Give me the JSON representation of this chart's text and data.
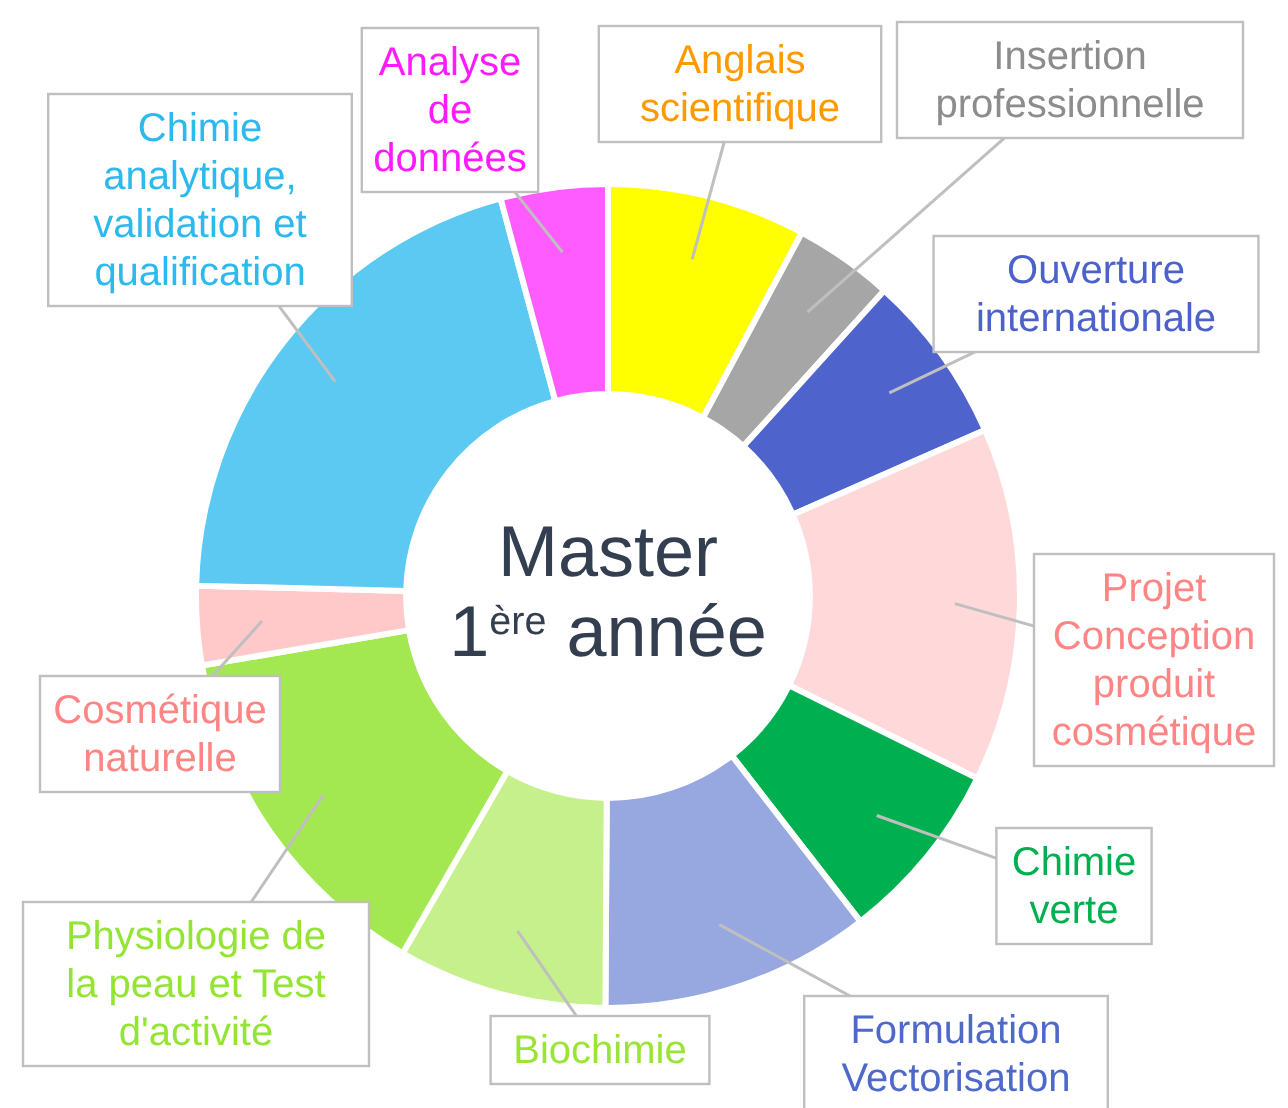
{
  "chart_data": {
    "type": "donut",
    "title": "Master 1$^{ère}$ année",
    "categories": [
      "Anglais\nscientifique",
      "Insertion\nprofessionnelle",
      "Ouverture\ninternationale",
      "Projet\nConception\nproduit\ncosmétique",
      "Chimie\nverte",
      "Formulation\nVectorisation",
      "Biochimie",
      "Physiologie de\nla peau et Test\nd'activité",
      "Cosmétique\nnaturelle",
      "Chimie\nanalytique,\nvalidation et\nqualification",
      "Analyse\nde\ndonnées"
    ],
    "values": [
      7.8,
      3.9,
      6.7,
      13.9,
      7.2,
      10.6,
      8.2,
      14.0,
      3.1,
      20.4,
      4.2
    ],
    "colors": [
      "#ffff00",
      "#a6a6a6",
      "#4f63cc",
      "#ffd9d9",
      "#00b050",
      "#97a7e0",
      "#c6f08c",
      "#a3e851",
      "#ffc9c9",
      "#5bc9f1",
      "#ff5cff"
    ]
  }
}
